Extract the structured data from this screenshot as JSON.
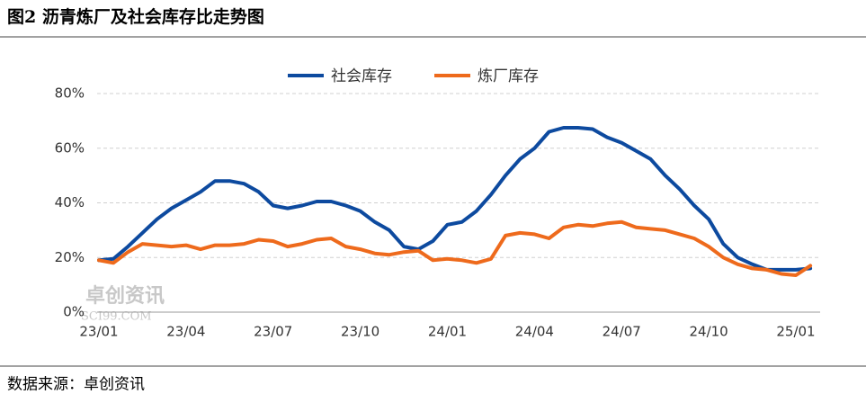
{
  "title": "图2 沥青炼厂及社会库存比走势图",
  "source": "数据来源：卓创资讯",
  "watermark": {
    "name": "卓创资讯",
    "site": "SCI99.COM"
  },
  "chart_data": {
    "type": "line",
    "categories": [
      "23/01",
      null,
      null,
      null,
      null,
      null,
      "23/04",
      null,
      null,
      null,
      null,
      null,
      "23/07",
      null,
      null,
      null,
      null,
      null,
      "23/10",
      null,
      null,
      null,
      null,
      null,
      "24/01",
      null,
      null,
      null,
      null,
      null,
      "24/04",
      null,
      null,
      null,
      null,
      null,
      "24/07",
      null,
      null,
      null,
      null,
      null,
      "24/10",
      null,
      null,
      null,
      null,
      null,
      "25/01",
      null
    ],
    "series": [
      {
        "name": "社会库存",
        "color": "#0d4a9f",
        "values": [
          19,
          19.5,
          24,
          29,
          34,
          38,
          41,
          44,
          48,
          48,
          47,
          44,
          39,
          38,
          39,
          40.5,
          40.5,
          39,
          37,
          33,
          30,
          24,
          23,
          26,
          32,
          33,
          37,
          43,
          50,
          56,
          60,
          66,
          67.5,
          67.5,
          67,
          64,
          62,
          59,
          56,
          50,
          45,
          39,
          34,
          25,
          20,
          17.5,
          15.5,
          15.5,
          15.5,
          16
        ]
      },
      {
        "name": "炼厂库存",
        "color": "#ee6a1c",
        "values": [
          19,
          18,
          22,
          25,
          24.5,
          24,
          24.5,
          23,
          24.5,
          24.5,
          25,
          26.5,
          26,
          24,
          25,
          26.5,
          27,
          24,
          23,
          21.5,
          21,
          22,
          22.5,
          19,
          19.5,
          19,
          18,
          19.5,
          28,
          29,
          28.5,
          27,
          31,
          32,
          31.5,
          32.5,
          33,
          31,
          30.5,
          30,
          28.5,
          27,
          24,
          20,
          17.5,
          16,
          15.5,
          14,
          13.5,
          17
        ]
      }
    ],
    "ylim": [
      0,
      80
    ],
    "yticks": [
      {
        "value": 0,
        "label": "0%"
      },
      {
        "value": 20,
        "label": "20%"
      },
      {
        "value": 40,
        "label": "40%"
      },
      {
        "value": 60,
        "label": "60%"
      },
      {
        "value": 80,
        "label": "80%"
      }
    ],
    "grid": true,
    "legend": "top"
  }
}
